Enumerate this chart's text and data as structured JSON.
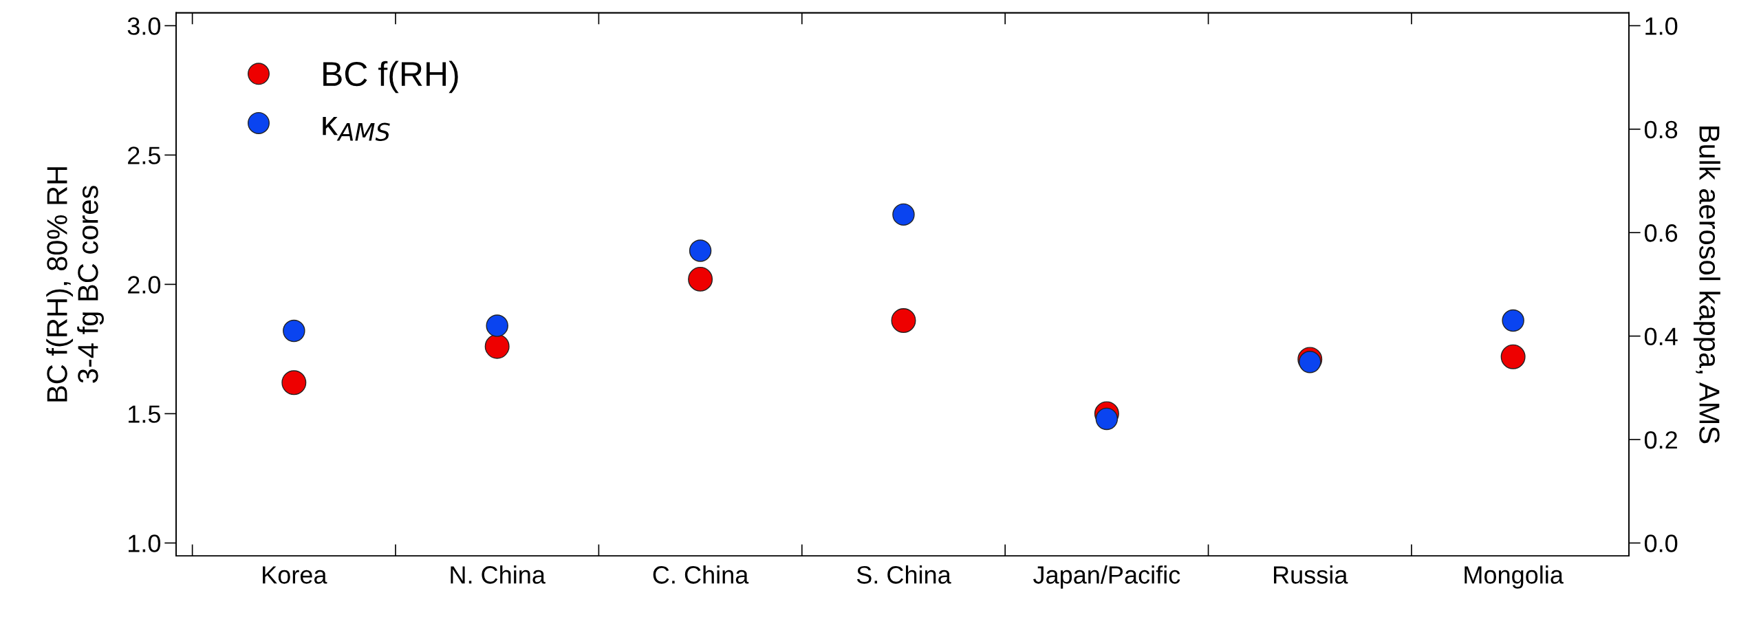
{
  "chart_data": {
    "type": "scatter",
    "categories": [
      "Korea",
      "N. China",
      "C. China",
      "S. China",
      "Japan/Pacific",
      "Russia",
      "Mongolia"
    ],
    "series": [
      {
        "name": "BC f(RH)",
        "color": "#ee0000",
        "values": [
          1.62,
          1.76,
          2.02,
          1.86,
          1.5,
          1.71,
          1.72
        ]
      },
      {
        "name": "κ$_{AMS}$",
        "color": "#0a44f0",
        "axis": "y2",
        "values": [
          0.41,
          0.42,
          0.565,
          0.635,
          0.24,
          0.35,
          0.43
        ]
      }
    ],
    "ylabel": "BC f(RH), 80% RH\n3-4 fg BC cores",
    "y2label": "Bulk aerosol kappa, AMS",
    "ylim": [
      0.95,
      3.05
    ],
    "yticks": [
      {
        "value": 1.0,
        "label": "1.0"
      },
      1.5,
      {
        "value": 2.0,
        "label": "2.0"
      },
      2.5,
      {
        "value": 3.0,
        "label": "3.0"
      }
    ],
    "y2lim": [
      -0.025,
      1.025
    ],
    "y2ticks": [
      {
        "value": 0.0,
        "label": "0.0"
      },
      0.2,
      0.4,
      0.6,
      0.8,
      {
        "value": 1.0,
        "label": "1.0"
      }
    ],
    "legend": "top left",
    "grid": false,
    "marker": "circle"
  }
}
